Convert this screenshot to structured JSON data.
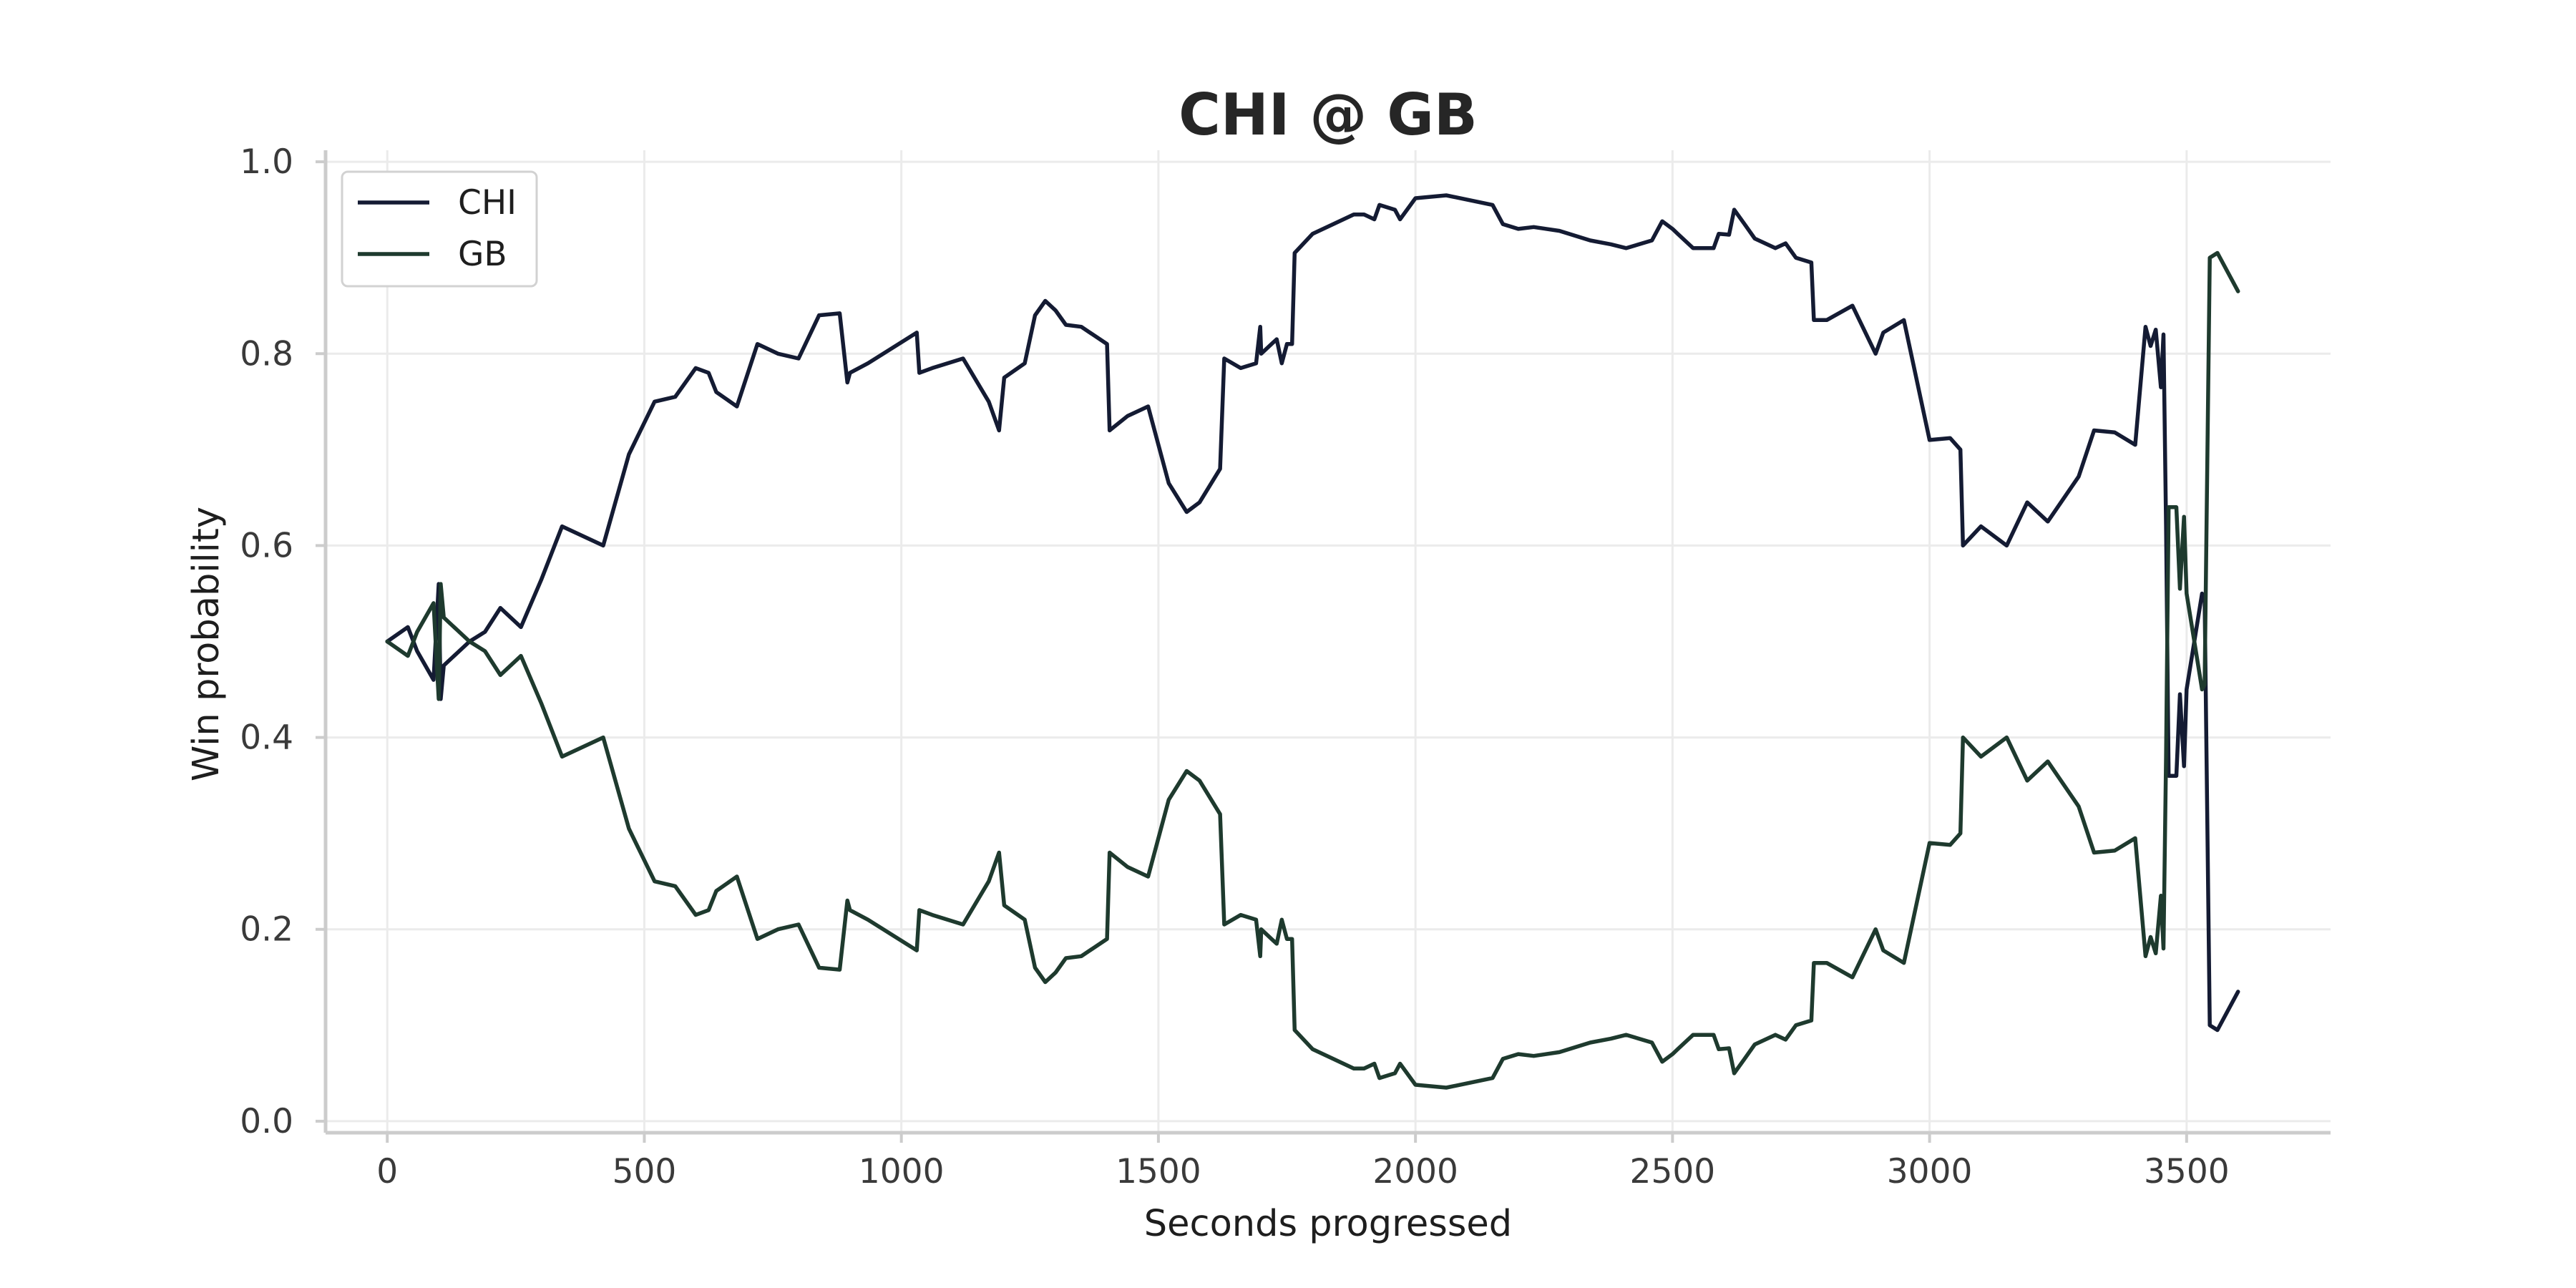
{
  "chart_data": {
    "type": "line",
    "title": "CHI @ GB",
    "xlabel": "Seconds progressed",
    "ylabel": "Win probability",
    "xlim": [
      -120,
      3780
    ],
    "ylim": [
      -0.012,
      1.012
    ],
    "x_ticks": [
      0,
      500,
      1000,
      1500,
      2000,
      2500,
      3000,
      3500
    ],
    "y_ticks": [
      0.0,
      0.2,
      0.4,
      0.6,
      0.8,
      1.0
    ],
    "grid": true,
    "legend_position": "top-left",
    "series": [
      {
        "name": "CHI",
        "color": "#141b33",
        "points": [
          [
            0,
            0.5
          ],
          [
            40,
            0.515
          ],
          [
            58,
            0.49
          ],
          [
            90,
            0.46
          ],
          [
            100,
            0.56
          ],
          [
            104,
            0.44
          ],
          [
            110,
            0.475
          ],
          [
            160,
            0.5
          ],
          [
            190,
            0.51
          ],
          [
            220,
            0.535
          ],
          [
            260,
            0.515
          ],
          [
            300,
            0.565
          ],
          [
            340,
            0.62
          ],
          [
            420,
            0.6
          ],
          [
            470,
            0.695
          ],
          [
            520,
            0.75
          ],
          [
            560,
            0.755
          ],
          [
            600,
            0.785
          ],
          [
            625,
            0.78
          ],
          [
            640,
            0.76
          ],
          [
            680,
            0.745
          ],
          [
            720,
            0.81
          ],
          [
            760,
            0.8
          ],
          [
            800,
            0.795
          ],
          [
            840,
            0.84
          ],
          [
            880,
            0.842
          ],
          [
            895,
            0.77
          ],
          [
            900,
            0.78
          ],
          [
            935,
            0.79
          ],
          [
            1030,
            0.822
          ],
          [
            1035,
            0.78
          ],
          [
            1060,
            0.785
          ],
          [
            1120,
            0.795
          ],
          [
            1170,
            0.75
          ],
          [
            1190,
            0.72
          ],
          [
            1200,
            0.775
          ],
          [
            1240,
            0.79
          ],
          [
            1260,
            0.84
          ],
          [
            1280,
            0.855
          ],
          [
            1300,
            0.845
          ],
          [
            1320,
            0.83
          ],
          [
            1350,
            0.828
          ],
          [
            1400,
            0.81
          ],
          [
            1405,
            0.72
          ],
          [
            1440,
            0.735
          ],
          [
            1480,
            0.745
          ],
          [
            1520,
            0.665
          ],
          [
            1555,
            0.635
          ],
          [
            1580,
            0.645
          ],
          [
            1620,
            0.68
          ],
          [
            1628,
            0.795
          ],
          [
            1660,
            0.785
          ],
          [
            1690,
            0.79
          ],
          [
            1698,
            0.828
          ],
          [
            1700,
            0.8
          ],
          [
            1720,
            0.81
          ],
          [
            1730,
            0.815
          ],
          [
            1740,
            0.79
          ],
          [
            1750,
            0.81
          ],
          [
            1760,
            0.81
          ],
          [
            1765,
            0.905
          ],
          [
            1800,
            0.925
          ],
          [
            1840,
            0.935
          ],
          [
            1880,
            0.945
          ],
          [
            1900,
            0.945
          ],
          [
            1920,
            0.94
          ],
          [
            1930,
            0.955
          ],
          [
            1960,
            0.95
          ],
          [
            1970,
            0.94
          ],
          [
            2000,
            0.962
          ],
          [
            2060,
            0.965
          ],
          [
            2150,
            0.955
          ],
          [
            2170,
            0.935
          ],
          [
            2200,
            0.93
          ],
          [
            2230,
            0.932
          ],
          [
            2280,
            0.928
          ],
          [
            2340,
            0.918
          ],
          [
            2380,
            0.914
          ],
          [
            2410,
            0.91
          ],
          [
            2460,
            0.918
          ],
          [
            2480,
            0.938
          ],
          [
            2500,
            0.93
          ],
          [
            2510,
            0.925
          ],
          [
            2540,
            0.91
          ],
          [
            2580,
            0.91
          ],
          [
            2590,
            0.925
          ],
          [
            2610,
            0.924
          ],
          [
            2620,
            0.95
          ],
          [
            2640,
            0.935
          ],
          [
            2660,
            0.92
          ],
          [
            2700,
            0.91
          ],
          [
            2720,
            0.915
          ],
          [
            2740,
            0.9
          ],
          [
            2770,
            0.895
          ],
          [
            2775,
            0.835
          ],
          [
            2800,
            0.835
          ],
          [
            2850,
            0.85
          ],
          [
            2895,
            0.8
          ],
          [
            2910,
            0.822
          ],
          [
            2950,
            0.835
          ],
          [
            3000,
            0.71
          ],
          [
            3040,
            0.712
          ],
          [
            3060,
            0.7
          ],
          [
            3065,
            0.6
          ],
          [
            3100,
            0.62
          ],
          [
            3150,
            0.6
          ],
          [
            3190,
            0.645
          ],
          [
            3230,
            0.625
          ],
          [
            3290,
            0.672
          ],
          [
            3320,
            0.72
          ],
          [
            3360,
            0.718
          ],
          [
            3400,
            0.705
          ],
          [
            3420,
            0.828
          ],
          [
            3430,
            0.808
          ],
          [
            3440,
            0.825
          ],
          [
            3450,
            0.765
          ],
          [
            3455,
            0.82
          ],
          [
            3460,
            0.62
          ],
          [
            3465,
            0.36
          ],
          [
            3480,
            0.36
          ],
          [
            3487,
            0.445
          ],
          [
            3495,
            0.37
          ],
          [
            3500,
            0.45
          ],
          [
            3530,
            0.55
          ],
          [
            3535,
            0.545
          ],
          [
            3545,
            0.1
          ],
          [
            3560,
            0.095
          ],
          [
            3600,
            0.135
          ]
        ]
      },
      {
        "name": "GB",
        "color": "#1e3a2e",
        "points": [
          [
            0,
            0.5
          ],
          [
            40,
            0.485
          ],
          [
            58,
            0.51
          ],
          [
            90,
            0.54
          ],
          [
            100,
            0.44
          ],
          [
            104,
            0.56
          ],
          [
            110,
            0.525
          ],
          [
            160,
            0.5
          ],
          [
            190,
            0.49
          ],
          [
            220,
            0.465
          ],
          [
            260,
            0.485
          ],
          [
            300,
            0.435
          ],
          [
            340,
            0.38
          ],
          [
            420,
            0.4
          ],
          [
            470,
            0.305
          ],
          [
            520,
            0.25
          ],
          [
            560,
            0.245
          ],
          [
            600,
            0.215
          ],
          [
            625,
            0.22
          ],
          [
            640,
            0.24
          ],
          [
            680,
            0.255
          ],
          [
            720,
            0.19
          ],
          [
            760,
            0.2
          ],
          [
            800,
            0.205
          ],
          [
            840,
            0.16
          ],
          [
            880,
            0.158
          ],
          [
            895,
            0.23
          ],
          [
            900,
            0.22
          ],
          [
            935,
            0.21
          ],
          [
            1030,
            0.178
          ],
          [
            1035,
            0.22
          ],
          [
            1060,
            0.215
          ],
          [
            1120,
            0.205
          ],
          [
            1170,
            0.25
          ],
          [
            1190,
            0.28
          ],
          [
            1200,
            0.225
          ],
          [
            1240,
            0.21
          ],
          [
            1260,
            0.16
          ],
          [
            1280,
            0.145
          ],
          [
            1300,
            0.155
          ],
          [
            1320,
            0.17
          ],
          [
            1350,
            0.172
          ],
          [
            1400,
            0.19
          ],
          [
            1405,
            0.28
          ],
          [
            1440,
            0.265
          ],
          [
            1480,
            0.255
          ],
          [
            1520,
            0.335
          ],
          [
            1555,
            0.365
          ],
          [
            1580,
            0.355
          ],
          [
            1620,
            0.32
          ],
          [
            1628,
            0.205
          ],
          [
            1660,
            0.215
          ],
          [
            1690,
            0.21
          ],
          [
            1698,
            0.172
          ],
          [
            1700,
            0.2
          ],
          [
            1720,
            0.19
          ],
          [
            1730,
            0.185
          ],
          [
            1740,
            0.21
          ],
          [
            1750,
            0.19
          ],
          [
            1760,
            0.19
          ],
          [
            1765,
            0.095
          ],
          [
            1800,
            0.075
          ],
          [
            1840,
            0.065
          ],
          [
            1880,
            0.055
          ],
          [
            1900,
            0.055
          ],
          [
            1920,
            0.06
          ],
          [
            1930,
            0.045
          ],
          [
            1960,
            0.05
          ],
          [
            1970,
            0.06
          ],
          [
            2000,
            0.038
          ],
          [
            2060,
            0.035
          ],
          [
            2150,
            0.045
          ],
          [
            2170,
            0.065
          ],
          [
            2200,
            0.07
          ],
          [
            2230,
            0.068
          ],
          [
            2280,
            0.072
          ],
          [
            2340,
            0.082
          ],
          [
            2380,
            0.086
          ],
          [
            2410,
            0.09
          ],
          [
            2460,
            0.082
          ],
          [
            2480,
            0.062
          ],
          [
            2500,
            0.07
          ],
          [
            2510,
            0.075
          ],
          [
            2540,
            0.09
          ],
          [
            2580,
            0.09
          ],
          [
            2590,
            0.075
          ],
          [
            2610,
            0.076
          ],
          [
            2620,
            0.05
          ],
          [
            2640,
            0.065
          ],
          [
            2660,
            0.08
          ],
          [
            2700,
            0.09
          ],
          [
            2720,
            0.085
          ],
          [
            2740,
            0.1
          ],
          [
            2770,
            0.105
          ],
          [
            2775,
            0.165
          ],
          [
            2800,
            0.165
          ],
          [
            2850,
            0.15
          ],
          [
            2895,
            0.2
          ],
          [
            2910,
            0.178
          ],
          [
            2950,
            0.165
          ],
          [
            3000,
            0.29
          ],
          [
            3040,
            0.288
          ],
          [
            3060,
            0.3
          ],
          [
            3065,
            0.4
          ],
          [
            3100,
            0.38
          ],
          [
            3150,
            0.4
          ],
          [
            3190,
            0.355
          ],
          [
            3230,
            0.375
          ],
          [
            3290,
            0.328
          ],
          [
            3320,
            0.28
          ],
          [
            3360,
            0.282
          ],
          [
            3400,
            0.295
          ],
          [
            3420,
            0.172
          ],
          [
            3430,
            0.192
          ],
          [
            3440,
            0.175
          ],
          [
            3450,
            0.235
          ],
          [
            3455,
            0.18
          ],
          [
            3460,
            0.38
          ],
          [
            3465,
            0.64
          ],
          [
            3480,
            0.64
          ],
          [
            3487,
            0.555
          ],
          [
            3495,
            0.63
          ],
          [
            3500,
            0.55
          ],
          [
            3530,
            0.45
          ],
          [
            3535,
            0.455
          ],
          [
            3545,
            0.9
          ],
          [
            3560,
            0.905
          ],
          [
            3600,
            0.865
          ]
        ]
      }
    ]
  }
}
